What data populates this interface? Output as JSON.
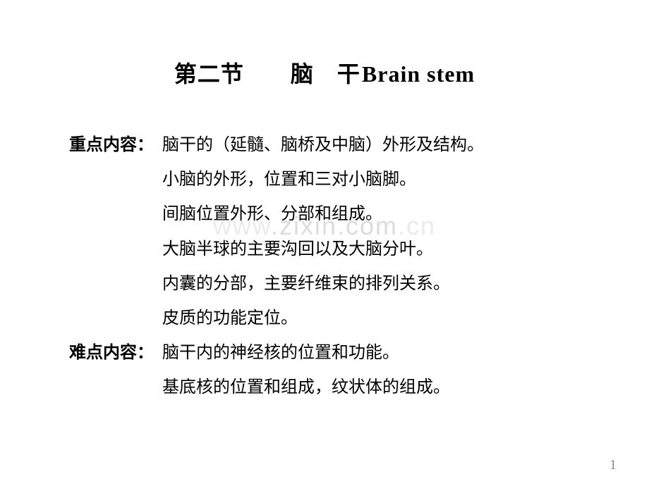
{
  "title": {
    "section": "第二节",
    "spacer": "　　",
    "name_cjk": "脑　干",
    "name_latin": "Brain stem"
  },
  "sections": {
    "key_label": "重点内容：",
    "key_points": [
      "脑干的（延髓、脑桥及中脑）外形及结构。",
      "小脑的外形，位置和三对小脑脚。",
      "间脑位置外形、分部和组成。",
      "大脑半球的主要沟回以及大脑分叶。",
      "内囊的分部，主要纤维束的排列关系。",
      "皮质的功能定位。"
    ],
    "hard_label": "难点内容：",
    "hard_points": [
      "脑干内的神经核的位置和功能。",
      "基底核的位置和组成，纹状体的组成。"
    ]
  },
  "watermark": "www.zixin.com.cn",
  "page_number": "1"
}
